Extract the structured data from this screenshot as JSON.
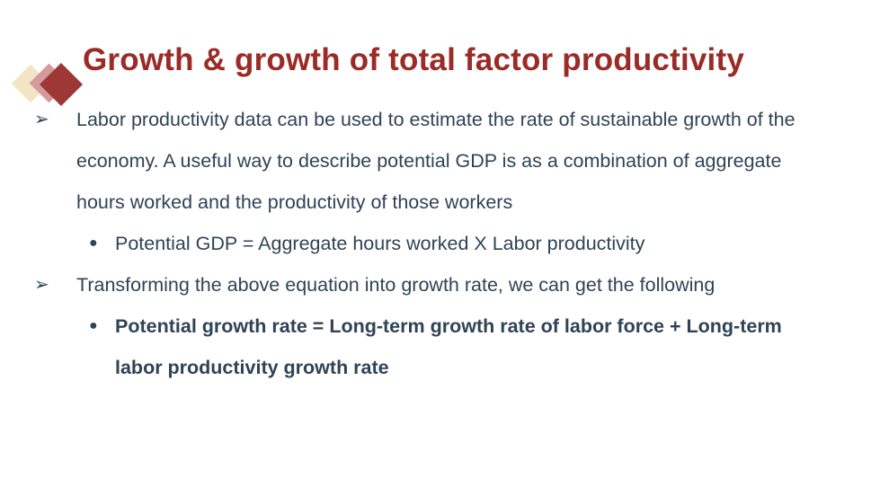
{
  "slide": {
    "title": "Growth & growth of total factor productivity",
    "decoration": {
      "shape": "three-overlapping-diamonds",
      "colors": [
        "#f3e4c3",
        "#d59a9c",
        "#9e3837"
      ]
    },
    "colors": {
      "title_text": "#9a2b26",
      "body_text": "#2f4356",
      "background": "#ffffff"
    },
    "bullets": [
      {
        "level": 1,
        "marker": "➢",
        "bold": false,
        "text": "Labor productivity data can be used to estimate the rate of sustainable growth of the economy. A useful way to describe potential GDP is as a combination of aggregate hours worked and the productivity of those workers"
      },
      {
        "level": 2,
        "marker": "●",
        "bold": false,
        "text": "Potential GDP = Aggregate hours worked X Labor productivity"
      },
      {
        "level": 1,
        "marker": "➢",
        "bold": false,
        "text": "Transforming the above equation into growth rate, we can get the following"
      },
      {
        "level": 2,
        "marker": "●",
        "bold": true,
        "text": "Potential growth rate = Long-term growth rate of labor force + Long-term labor productivity growth rate"
      }
    ]
  }
}
